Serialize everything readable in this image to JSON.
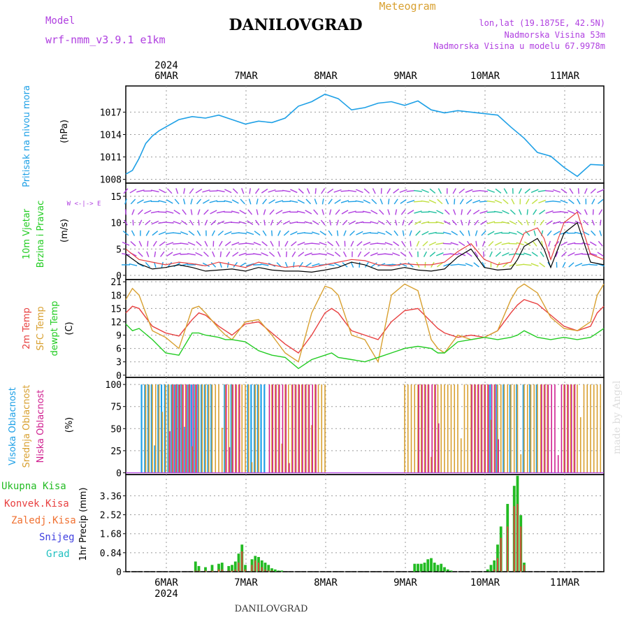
{
  "header": {
    "model_label": "Model",
    "model_value": "wrf-nmm_v3.9.1 e1km",
    "title": "DANILOVGRAD",
    "subtitle": "Meteogram",
    "lonlat": "lon,lat (19.1875E, 42.5N)",
    "elevation": "Nadmorska Visina 53m",
    "model_elevation": "Nadmorska Visina u modelu 67.9978m",
    "credit": "made by Angel",
    "footer_title": "DANILOVGRAD"
  },
  "colors": {
    "pressure": "#1ea0e6",
    "wind_speed_label": "#22cc22",
    "wind_arrow": "#b040e0",
    "temp2m": "#e84040",
    "sfc_temp": "#d8a030",
    "dewpoint": "#22cc22",
    "high_cloud": "#1ea0e6",
    "mid_cloud": "#d8a030",
    "low_cloud": "#d02090",
    "total_precip": "#22bb22",
    "conv_precip": "#e84040",
    "frozen_precip": "#f07030",
    "snow": "#4040e0",
    "hail": "#20c0c0",
    "grid": "#999999"
  },
  "x_axis": {
    "year": "2024",
    "dates": [
      "6MAR",
      "7MAR",
      "8MAR",
      "9MAR",
      "10MAR",
      "11MAR"
    ]
  },
  "chart_data": [
    {
      "type": "line",
      "panel": "pressure",
      "ylabel": "(hPa)",
      "side_labels": [
        "Pritisak na nivou mora"
      ],
      "yticks": [
        1008,
        1011,
        1014,
        1017
      ],
      "ylim": [
        1007.5,
        1020.5
      ],
      "x": [
        0,
        2,
        4,
        6,
        8,
        10,
        12,
        16,
        20,
        24,
        28,
        32,
        36,
        40,
        44,
        48,
        52,
        56,
        60,
        64,
        68,
        72,
        76,
        80,
        84,
        88,
        92,
        96,
        100,
        104,
        108,
        112,
        116,
        120,
        124,
        128,
        132,
        136,
        140,
        144
      ],
      "series": [
        {
          "values": [
            1008.7,
            1009.2,
            1010.8,
            1012.8,
            1013.8,
            1014.5,
            1015.0,
            1016.0,
            1016.4,
            1016.2,
            1016.6,
            1016.0,
            1015.4,
            1015.8,
            1015.6,
            1016.2,
            1017.8,
            1018.4,
            1019.4,
            1018.8,
            1017.3,
            1017.6,
            1018.2,
            1018.4,
            1017.9,
            1018.5,
            1017.3,
            1016.9,
            1017.2,
            1017.0,
            1016.8,
            1016.6,
            1015.0,
            1013.5,
            1011.6,
            1011.1,
            1009.6,
            1008.4,
            1010.0,
            1009.9
          ]
        }
      ]
    },
    {
      "type": "line",
      "panel": "wind",
      "ylabel": "(m/s)",
      "side_labels": [
        "10m Vjetar",
        "Brzina i Pravac"
      ],
      "direction_key": "W <-|-> E",
      "yticks": [
        0,
        5,
        10,
        15
      ],
      "ylim": [
        -0.8,
        17.5
      ],
      "x": [
        0,
        4,
        8,
        12,
        16,
        20,
        24,
        28,
        32,
        36,
        40,
        44,
        48,
        52,
        56,
        60,
        64,
        68,
        72,
        76,
        80,
        84,
        88,
        92,
        96,
        100,
        104,
        108,
        112,
        116,
        118,
        120,
        124,
        126,
        128,
        132,
        136,
        140,
        144
      ],
      "series": [
        {
          "values": [
            4.0,
            2.2,
            1.2,
            1.5,
            2.0,
            1.5,
            0.8,
            1.0,
            1.2,
            0.8,
            1.5,
            1.0,
            0.8,
            0.8,
            0.6,
            1.0,
            1.5,
            2.5,
            2.0,
            1.0,
            1.0,
            1.5,
            1.0,
            0.8,
            1.2,
            3.5,
            5.0,
            1.5,
            1.0,
            1.2,
            3.0,
            5.5,
            7.0,
            5.0,
            1.5,
            8.0,
            10.0,
            2.5,
            2.0
          ]
        },
        {
          "values": [
            5.0,
            3.0,
            2.5,
            2.0,
            2.5,
            2.2,
            1.8,
            2.5,
            2.0,
            1.5,
            2.5,
            2.0,
            1.5,
            1.8,
            1.5,
            2.0,
            2.5,
            3.0,
            2.8,
            2.0,
            1.8,
            2.2,
            2.0,
            2.0,
            2.5,
            4.5,
            6.0,
            3.0,
            2.0,
            2.5,
            5.0,
            8.0,
            9.0,
            7.0,
            3.0,
            10.0,
            12.0,
            4.0,
            3.0
          ]
        }
      ]
    },
    {
      "type": "line",
      "panel": "temperature",
      "ylabel": "(C)",
      "side_labels": [
        "2m Temp",
        "SFC Temp",
        "dewpt Temp"
      ],
      "yticks": [
        0,
        3,
        6,
        9,
        12,
        15,
        18,
        21
      ],
      "ylim": [
        -0.5,
        21.5
      ],
      "x": [
        0,
        2,
        4,
        8,
        12,
        16,
        20,
        22,
        24,
        28,
        30,
        32,
        36,
        40,
        44,
        48,
        52,
        56,
        60,
        62,
        64,
        68,
        72,
        76,
        80,
        84,
        88,
        92,
        94,
        96,
        100,
        104,
        108,
        112,
        116,
        118,
        120,
        124,
        128,
        132,
        136,
        140,
        142,
        144
      ],
      "series": [
        {
          "name": "2m Temp",
          "values": [
            14.0,
            15.5,
            15.0,
            11.0,
            9.5,
            8.8,
            12.5,
            14.0,
            13.5,
            11.0,
            10.0,
            9.0,
            11.5,
            12.0,
            9.5,
            7.0,
            5.0,
            9.0,
            14.0,
            15.0,
            14.0,
            10.0,
            9.0,
            8.0,
            12.0,
            14.5,
            15.0,
            12.0,
            10.5,
            9.5,
            8.5,
            9.0,
            8.5,
            10.0,
            14.0,
            15.8,
            17.0,
            16.0,
            13.5,
            11.0,
            10.0,
            11.0,
            14.0,
            15.5
          ]
        },
        {
          "name": "SFC Temp",
          "values": [
            17.0,
            19.5,
            18.0,
            10.0,
            8.5,
            6.0,
            15.0,
            15.5,
            14.0,
            10.5,
            9.0,
            8.0,
            12.0,
            12.5,
            9.0,
            5.0,
            3.0,
            14.0,
            20.0,
            19.5,
            18.0,
            9.0,
            8.0,
            3.0,
            18.0,
            20.5,
            19.0,
            8.0,
            6.0,
            5.0,
            9.0,
            8.0,
            8.5,
            10.0,
            17.0,
            19.5,
            20.5,
            18.5,
            13.0,
            10.5,
            10.0,
            12.0,
            18.0,
            20.5
          ]
        },
        {
          "name": "dewpt Temp",
          "values": [
            11.5,
            10.0,
            10.5,
            8.0,
            5.0,
            4.5,
            9.5,
            9.5,
            9.0,
            8.5,
            8.0,
            8.0,
            7.5,
            5.5,
            4.5,
            4.0,
            1.5,
            3.5,
            4.5,
            5.0,
            4.0,
            3.5,
            3.0,
            4.0,
            5.0,
            6.0,
            6.5,
            6.0,
            5.0,
            5.0,
            7.5,
            8.0,
            8.5,
            8.0,
            8.5,
            9.0,
            10.0,
            8.5,
            8.0,
            8.5,
            8.0,
            8.5,
            9.5,
            10.5
          ]
        }
      ]
    },
    {
      "type": "bar",
      "panel": "cloud",
      "ylabel": "(%)",
      "side_labels": [
        "Visoka Oblacnost",
        "Srednja Oblacnost",
        "Niska Oblacnost"
      ],
      "yticks": [
        0,
        25,
        50,
        75,
        100
      ],
      "ylim": [
        -2,
        108
      ],
      "note": "1 = cloud cover near 100% in that hour",
      "series": [
        {
          "name": "Visoka Oblacnost",
          "values": "5-26,30,32,37-42,110,112,114,116,118,120,122,124"
        },
        {
          "name": "Srednja Oblacnost",
          "values": "6-40,44-60,84-127,132-143"
        },
        {
          "name": "Niska Oblacnost",
          "values": "13-21,30-34,43-57,88-94,104-112,125-135"
        }
      ]
    },
    {
      "type": "bar",
      "panel": "precip",
      "ylabel": "1hr Precip (mm)",
      "side_labels": [
        "Ukupna Kisa",
        "Konvek.Kisa",
        "Zaledj.Kisa",
        "Snijeg",
        "Grad"
      ],
      "yticks": [
        0,
        0.84,
        1.68,
        2.52,
        3.36
      ],
      "ylim": [
        0,
        4.3
      ],
      "x": [
        21,
        22,
        24,
        26,
        28,
        29,
        31,
        32,
        33,
        34,
        35,
        36,
        38,
        39,
        40,
        41,
        42,
        43,
        44,
        45,
        46,
        47,
        48,
        87,
        88,
        89,
        90,
        91,
        92,
        93,
        94,
        95,
        96,
        97,
        98,
        99,
        100,
        101,
        102,
        103,
        104,
        105,
        106,
        107,
        108,
        109,
        110,
        111,
        112,
        113,
        115,
        117,
        118,
        119,
        120,
        121,
        122,
        123,
        124,
        125,
        126,
        127
      ],
      "series": [
        {
          "name": "Ukupna Kisa",
          "values": [
            0.45,
            0.25,
            0.2,
            0.3,
            0.35,
            0.4,
            0.25,
            0.3,
            0.45,
            0.8,
            1.2,
            0.3,
            0.55,
            0.7,
            0.65,
            0.5,
            0.4,
            0.3,
            0.15,
            0.1,
            0.05,
            0.05,
            0.0,
            0.35,
            0.35,
            0.35,
            0.4,
            0.55,
            0.6,
            0.4,
            0.3,
            0.35,
            0.2,
            0.1,
            0.05,
            0.0,
            0.0,
            0.0,
            0.0,
            0.0,
            0.0,
            0.0,
            0.0,
            0.0,
            0.0,
            0.1,
            0.3,
            0.5,
            1.2,
            2.0,
            3.0,
            3.8,
            4.25,
            2.5,
            0.4,
            0.0,
            0.0,
            0.0,
            0.0,
            0.0,
            0.0,
            0.0
          ]
        },
        {
          "name": "Konvek.Kisa",
          "values": [
            0.05,
            0.05,
            0.05,
            0.05,
            0.1,
            0.1,
            0.05,
            0.05,
            0.1,
            0.4,
            0.9,
            0.1,
            0.3,
            0.5,
            0.4,
            0.2,
            0.1,
            0.05,
            0.05,
            0.0,
            0.0,
            0.0,
            0.0,
            0.0,
            0.0,
            0.0,
            0.0,
            0.0,
            0.0,
            0.0,
            0.0,
            0.0,
            0.0,
            0.0,
            0.0,
            0.0,
            0.0,
            0.0,
            0.0,
            0.0,
            0.0,
            0.0,
            0.0,
            0.0,
            0.0,
            0.0,
            0.0,
            0.1,
            0.6,
            1.5,
            2.0,
            2.9,
            3.0,
            2.0,
            0.3,
            0.0,
            0.0,
            0.0,
            0.0,
            0.0,
            0.0,
            0.0
          ]
        }
      ]
    }
  ]
}
